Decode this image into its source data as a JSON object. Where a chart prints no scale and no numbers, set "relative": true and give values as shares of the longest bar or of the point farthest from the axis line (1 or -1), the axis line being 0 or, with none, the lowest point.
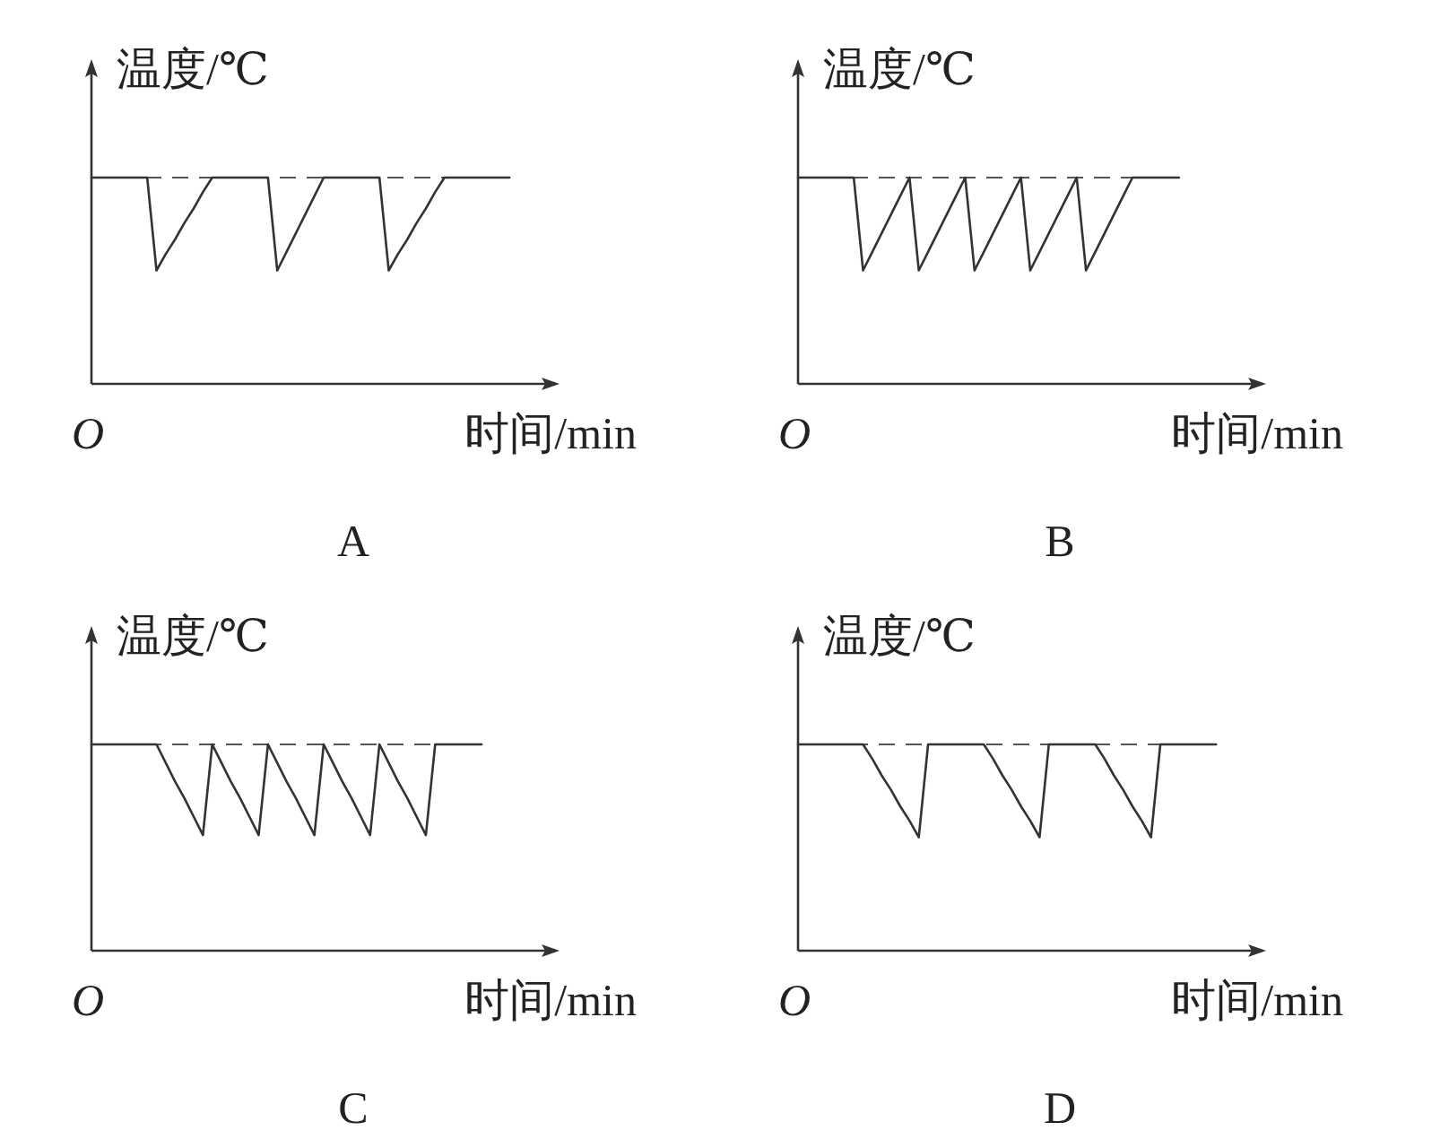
{
  "chart_data": [
    {
      "type": "line",
      "relative": true,
      "ylabel": "温度/℃",
      "xlabel": "时间/min",
      "annotations": [
        "O",
        "A"
      ],
      "categories": [
        null,
        null,
        null,
        null,
        null,
        null,
        null,
        null,
        null,
        null,
        null,
        null,
        null,
        null,
        null,
        null,
        null,
        null,
        null,
        null,
        null,
        null,
        null,
        null,
        null,
        null,
        null,
        null,
        null,
        null,
        null,
        null,
        null,
        null,
        null,
        null,
        null,
        null,
        null,
        null,
        null,
        null,
        null,
        null,
        null,
        null
      ],
      "series": [
        {
          "color": "#333333",
          "values": [
            1,
            1,
            1,
            1,
            1,
            1,
            1,
            0.55,
            0.63,
            0.7,
            0.78,
            0.85,
            0.93,
            1,
            1,
            1,
            1,
            1,
            1,
            1,
            0.55,
            0.64,
            0.73,
            0.82,
            0.91,
            1,
            1,
            1,
            1,
            1,
            1,
            1,
            0.55,
            0.63,
            0.7,
            0.78,
            0.85,
            0.93,
            1,
            1,
            1,
            1,
            1,
            1,
            1,
            1
          ]
        }
      ],
      "ref_lines": [
        {
          "axis": "y",
          "value": 1,
          "line_style": "dashed",
          "color": "#555555"
        }
      ]
    },
    {
      "type": "line",
      "relative": true,
      "ylabel": "温度/℃",
      "xlabel": "时间/min",
      "annotations": [
        "O",
        "B"
      ],
      "categories": [
        null,
        null,
        null,
        null,
        null,
        null,
        null,
        null,
        null,
        null,
        null,
        null,
        null,
        null,
        null,
        null,
        null,
        null,
        null,
        null,
        null,
        null,
        null,
        null,
        null,
        null,
        null,
        null,
        null,
        null,
        null,
        null,
        null,
        null,
        null,
        null,
        null,
        null,
        null,
        null,
        null,
        null
      ],
      "series": [
        {
          "color": "#333333",
          "values": [
            1,
            1,
            1,
            1,
            1,
            1,
            1,
            0.55,
            0.64,
            0.73,
            0.82,
            0.91,
            1,
            0.55,
            0.64,
            0.73,
            0.82,
            0.91,
            1,
            0.55,
            0.64,
            0.73,
            0.82,
            0.91,
            1,
            0.55,
            0.64,
            0.73,
            0.82,
            0.91,
            1,
            0.55,
            0.64,
            0.73,
            0.82,
            0.91,
            1,
            1,
            1,
            1,
            1,
            1
          ]
        }
      ],
      "ref_lines": [
        {
          "axis": "y",
          "value": 1,
          "line_style": "dashed",
          "color": "#555555"
        }
      ]
    },
    {
      "type": "line",
      "relative": true,
      "ylabel": "温度/℃",
      "xlabel": "时间/min",
      "annotations": [
        "O",
        "C"
      ],
      "categories": [
        null,
        null,
        null,
        null,
        null,
        null,
        null,
        null,
        null,
        null,
        null,
        null,
        null,
        null,
        null,
        null,
        null,
        null,
        null,
        null,
        null,
        null,
        null,
        null,
        null,
        null,
        null,
        null,
        null,
        null,
        null,
        null,
        null,
        null,
        null,
        null,
        null,
        null,
        null,
        null,
        null,
        null,
        null
      ],
      "series": [
        {
          "color": "#333333",
          "values": [
            1,
            1,
            1,
            1,
            1,
            1,
            1,
            1,
            0.91,
            0.82,
            0.74,
            0.65,
            0.56,
            1,
            0.91,
            0.82,
            0.74,
            0.65,
            0.56,
            1,
            0.91,
            0.82,
            0.74,
            0.65,
            0.56,
            1,
            0.91,
            0.82,
            0.74,
            0.65,
            0.56,
            1,
            0.91,
            0.82,
            0.74,
            0.65,
            0.56,
            1,
            1,
            1,
            1,
            1,
            1
          ]
        }
      ],
      "ref_lines": [
        {
          "axis": "y",
          "value": 1,
          "line_style": "dashed",
          "color": "#555555"
        }
      ]
    },
    {
      "type": "line",
      "relative": true,
      "ylabel": "温度/℃",
      "xlabel": "时间/min",
      "annotations": [
        "O",
        "D"
      ],
      "categories": [
        null,
        null,
        null,
        null,
        null,
        null,
        null,
        null,
        null,
        null,
        null,
        null,
        null,
        null,
        null,
        null,
        null,
        null,
        null,
        null,
        null,
        null,
        null,
        null,
        null,
        null,
        null,
        null,
        null,
        null,
        null,
        null,
        null,
        null,
        null,
        null,
        null,
        null,
        null,
        null,
        null,
        null,
        null,
        null,
        null,
        null
      ],
      "series": [
        {
          "color": "#333333",
          "values": [
            1,
            1,
            1,
            1,
            1,
            1,
            1,
            1,
            0.93,
            0.85,
            0.78,
            0.7,
            0.63,
            0.55,
            1,
            1,
            1,
            1,
            1,
            1,
            1,
            0.93,
            0.85,
            0.78,
            0.7,
            0.63,
            0.55,
            1,
            1,
            1,
            1,
            1,
            1,
            0.93,
            0.85,
            0.78,
            0.7,
            0.63,
            0.55,
            1,
            1,
            1,
            1,
            1,
            1,
            1
          ]
        }
      ],
      "ref_lines": [
        {
          "axis": "y",
          "value": 1,
          "line_style": "dashed",
          "color": "#555555"
        }
      ]
    }
  ]
}
